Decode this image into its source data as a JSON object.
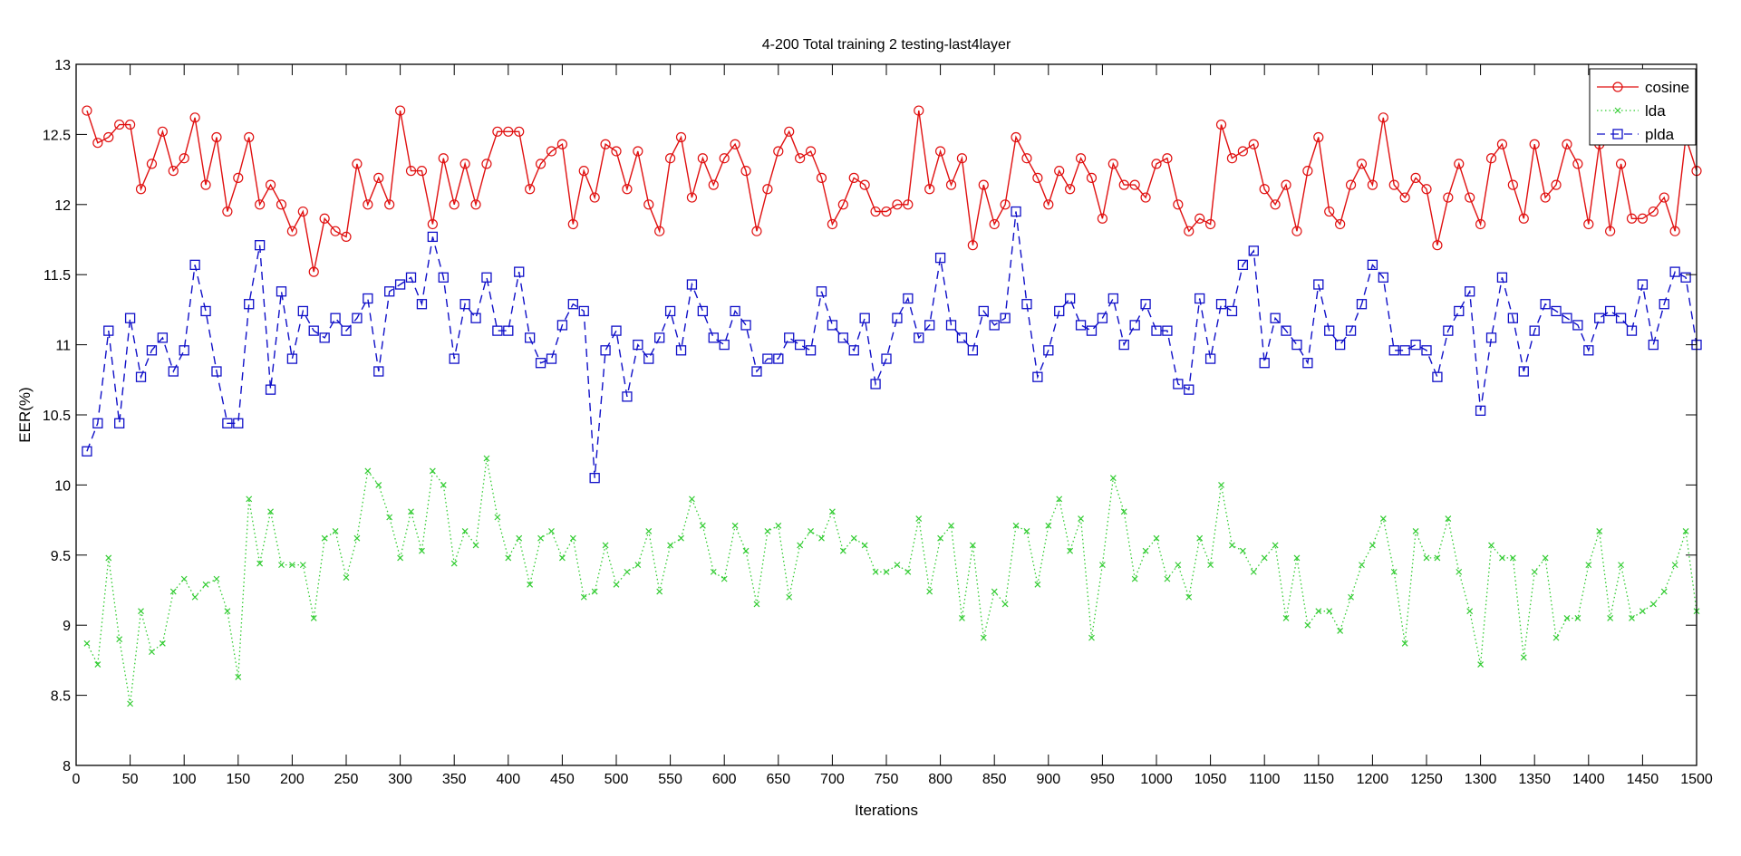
{
  "chart_data": {
    "type": "line",
    "title": "4-200 Total training 2 testing-last4layer",
    "xlabel": "Iterations",
    "ylabel": "EER(%)",
    "xlim": [
      0,
      1500
    ],
    "ylim": [
      8,
      13
    ],
    "grid": false,
    "legend_position": "top-right",
    "x_ticks": [
      "0",
      "50",
      "100",
      "150",
      "200",
      "250",
      "300",
      "350",
      "400",
      "450",
      "500",
      "550",
      "600",
      "650",
      "700",
      "750",
      "800",
      "850",
      "900",
      "950",
      "1000",
      "1050",
      "1100",
      "1150",
      "1200",
      "1250",
      "1300",
      "1350",
      "1400",
      "1450",
      "1500"
    ],
    "y_ticks": [
      "8",
      "8.5",
      "9",
      "9.5",
      "10",
      "10.5",
      "11",
      "11.5",
      "12",
      "12.5",
      "13"
    ],
    "x": [
      10,
      20,
      30,
      40,
      50,
      60,
      70,
      80,
      90,
      100,
      110,
      120,
      130,
      140,
      150,
      160,
      170,
      180,
      190,
      200,
      210,
      220,
      230,
      240,
      250,
      260,
      270,
      280,
      290,
      300,
      310,
      320,
      330,
      340,
      350,
      360,
      370,
      380,
      390,
      400,
      410,
      420,
      430,
      440,
      450,
      460,
      470,
      480,
      490,
      500,
      510,
      520,
      530,
      540,
      550,
      560,
      570,
      580,
      590,
      600,
      610,
      620,
      630,
      640,
      650,
      660,
      670,
      680,
      690,
      700,
      710,
      720,
      730,
      740,
      750,
      760,
      770,
      780,
      790,
      800,
      810,
      820,
      830,
      840,
      850,
      860,
      870,
      880,
      890,
      900,
      910,
      920,
      930,
      940,
      950,
      960,
      970,
      980,
      990,
      1000,
      1010,
      1020,
      1030,
      1040,
      1050,
      1060,
      1070,
      1080,
      1090,
      1100,
      1110,
      1120,
      1130,
      1140,
      1150,
      1160,
      1170,
      1180,
      1190,
      1200,
      1210,
      1220,
      1230,
      1240,
      1250,
      1260,
      1270,
      1280,
      1290,
      1300,
      1310,
      1320,
      1330,
      1340,
      1350,
      1360,
      1370,
      1380,
      1390,
      1400,
      1410,
      1420,
      1430,
      1440,
      1450,
      1460,
      1470,
      1480,
      1490,
      1500
    ],
    "series": [
      {
        "name": "cosine",
        "color": "#e01010",
        "style": "solid",
        "marker": "circle",
        "values": [
          12.67,
          12.44,
          12.48,
          12.57,
          12.57,
          12.11,
          12.29,
          12.52,
          12.24,
          12.33,
          12.62,
          12.14,
          12.48,
          11.95,
          12.19,
          12.48,
          12.0,
          12.14,
          12.0,
          11.81,
          11.95,
          11.52,
          11.9,
          11.81,
          11.77,
          12.29,
          12.0,
          12.19,
          12.0,
          12.67,
          12.24,
          12.24,
          11.86,
          12.33,
          12.0,
          12.29,
          12.0,
          12.29,
          12.52,
          12.52,
          12.52,
          12.11,
          12.29,
          12.38,
          12.43,
          11.86,
          12.24,
          12.05,
          12.43,
          12.38,
          12.11,
          12.38,
          12.0,
          11.81,
          12.33,
          12.48,
          12.05,
          12.33,
          12.14,
          12.33,
          12.43,
          12.24,
          11.81,
          12.11,
          12.38,
          12.52,
          12.33,
          12.38,
          12.19,
          11.86,
          12.0,
          12.19,
          12.14,
          11.95,
          11.95,
          12.0,
          12.0,
          12.67,
          12.11,
          12.38,
          12.14,
          12.33,
          11.71,
          12.14,
          11.86,
          12.0,
          12.48,
          12.33,
          12.19,
          12.0,
          12.24,
          12.11,
          12.33,
          12.19,
          11.9,
          12.29,
          12.14,
          12.14,
          12.05,
          12.29,
          12.33,
          12.0,
          11.81,
          11.9,
          11.86,
          12.57,
          12.33,
          12.38,
          12.43,
          12.11,
          12.0,
          12.14,
          11.81,
          12.24,
          12.48,
          11.95,
          11.86,
          12.14,
          12.29,
          12.14,
          12.62,
          12.14,
          12.05,
          12.19,
          12.11,
          11.71,
          12.05,
          12.29,
          12.05,
          11.86,
          12.33,
          12.43,
          12.14,
          11.9,
          12.43,
          12.05,
          12.14,
          12.43,
          12.29,
          11.86,
          12.43,
          11.81,
          12.29,
          11.9,
          11.9,
          11.95,
          12.05,
          11.81,
          12.48,
          12.24
        ]
      },
      {
        "name": "lda",
        "color": "#33cc33",
        "style": "dotted",
        "marker": "x",
        "values": [
          8.87,
          8.72,
          9.48,
          8.9,
          8.44,
          9.1,
          8.81,
          8.87,
          9.24,
          9.33,
          9.2,
          9.29,
          9.33,
          9.1,
          8.63,
          9.9,
          9.44,
          9.81,
          9.43,
          9.43,
          9.43,
          9.05,
          9.62,
          9.67,
          9.34,
          9.62,
          10.1,
          10.0,
          9.77,
          9.48,
          9.81,
          9.53,
          10.1,
          10.0,
          9.44,
          9.67,
          9.57,
          10.19,
          9.77,
          9.48,
          9.62,
          9.29,
          9.62,
          9.67,
          9.48,
          9.62,
          9.2,
          9.24,
          9.57,
          9.29,
          9.38,
          9.43,
          9.67,
          9.24,
          9.57,
          9.62,
          9.9,
          9.71,
          9.38,
          9.33,
          9.71,
          9.53,
          9.15,
          9.67,
          9.71,
          9.2,
          9.57,
          9.67,
          9.62,
          9.81,
          9.53,
          9.62,
          9.57,
          9.38,
          9.38,
          9.43,
          9.38,
          9.76,
          9.24,
          9.62,
          9.71,
          9.05,
          9.57,
          8.91,
          9.24,
          9.15,
          9.71,
          9.67,
          9.29,
          9.71,
          9.9,
          9.53,
          9.76,
          8.91,
          9.43,
          10.05,
          9.81,
          9.33,
          9.53,
          9.62,
          9.33,
          9.43,
          9.2,
          9.62,
          9.43,
          10.0,
          9.57,
          9.53,
          9.38,
          9.48,
          9.57,
          9.05,
          9.48,
          9.0,
          9.1,
          9.1,
          8.96,
          9.2,
          9.43,
          9.57,
          9.76,
          9.38,
          8.87,
          9.67,
          9.48,
          9.48,
          9.76,
          9.38,
          9.1,
          8.72,
          9.57,
          9.48,
          9.48,
          8.77,
          9.38,
          9.48,
          8.91,
          9.05,
          9.05,
          9.43,
          9.67,
          9.05,
          9.43,
          9.05,
          9.1,
          9.15,
          9.24,
          9.43,
          9.67,
          9.1
        ]
      },
      {
        "name": "plda",
        "color": "#1010c8",
        "style": "dashed",
        "marker": "square",
        "values": [
          10.24,
          10.44,
          11.1,
          10.44,
          11.19,
          10.77,
          10.96,
          11.05,
          10.81,
          10.96,
          11.57,
          11.24,
          10.81,
          10.44,
          10.44,
          11.29,
          11.71,
          10.68,
          11.38,
          10.9,
          11.24,
          11.1,
          11.05,
          11.19,
          11.1,
          11.19,
          11.33,
          10.81,
          11.38,
          11.43,
          11.48,
          11.29,
          11.77,
          11.48,
          10.9,
          11.29,
          11.19,
          11.48,
          11.1,
          11.1,
          11.52,
          11.05,
          10.87,
          10.9,
          11.14,
          11.29,
          11.24,
          10.05,
          10.96,
          11.1,
          10.63,
          11.0,
          10.9,
          11.05,
          11.24,
          10.96,
          11.43,
          11.24,
          11.05,
          11.0,
          11.24,
          11.14,
          10.81,
          10.9,
          10.9,
          11.05,
          11.0,
          10.96,
          11.38,
          11.14,
          11.05,
          10.96,
          11.19,
          10.72,
          10.9,
          11.19,
          11.33,
          11.05,
          11.14,
          11.62,
          11.14,
          11.05,
          10.96,
          11.24,
          11.14,
          11.19,
          11.95,
          11.29,
          10.77,
          10.96,
          11.24,
          11.33,
          11.14,
          11.1,
          11.19,
          11.33,
          11.0,
          11.14,
          11.29,
          11.1,
          11.1,
          10.72,
          10.68,
          11.33,
          10.9,
          11.29,
          11.24,
          11.57,
          11.67,
          10.87,
          11.19,
          11.1,
          11.0,
          10.87,
          11.43,
          11.1,
          11.0,
          11.1,
          11.29,
          11.57,
          11.48,
          10.96,
          10.96,
          11.0,
          10.96,
          10.77,
          11.1,
          11.24,
          11.38,
          10.53,
          11.05,
          11.48,
          11.19,
          10.81,
          11.1,
          11.29,
          11.24,
          11.19,
          11.14,
          10.96,
          11.19,
          11.24,
          11.19,
          11.1,
          11.43,
          11.0,
          11.29,
          11.52,
          11.48,
          11.0
        ]
      }
    ]
  }
}
